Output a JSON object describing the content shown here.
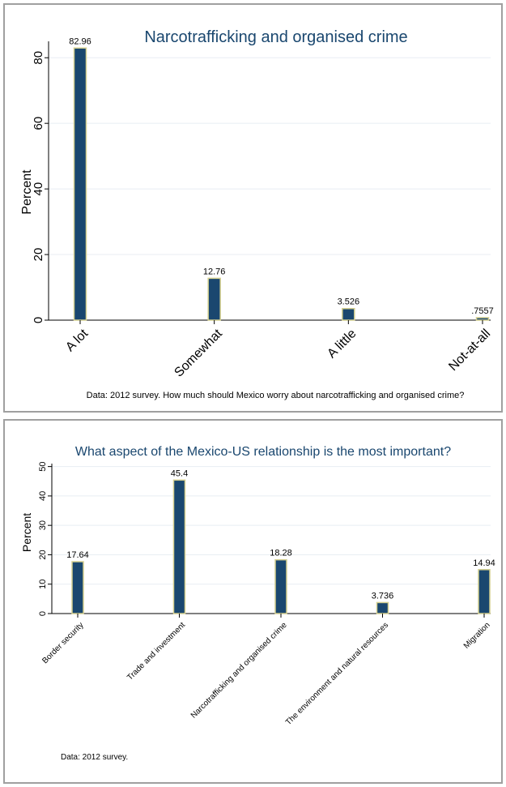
{
  "chart_data": [
    {
      "type": "bar",
      "title": "Narcotrafficking and organised crime",
      "ylabel": "Percent",
      "xlabel": "",
      "categories": [
        "A lot",
        "Somewhat",
        "A little",
        "Not-at-all"
      ],
      "values": [
        82.96,
        12.76,
        3.526,
        0.7557
      ],
      "value_labels": [
        "82.96",
        "12.76",
        "3.526",
        ".7557"
      ],
      "yticks": [
        0,
        20,
        40,
        60,
        80
      ],
      "ylim": [
        0,
        85
      ],
      "grid": true,
      "note": "Data: 2012 survey. How much should Mexico worry about narcotrafficking and organised crime?",
      "bar_color": "#1a476f",
      "bar_outline": "#d4cf8f",
      "title_color": "#1a476f"
    },
    {
      "type": "bar",
      "title": "What aspect of the Mexico-US relationship is the most important?",
      "ylabel": "Percent",
      "xlabel": "",
      "categories": [
        "Border security",
        "Trade and investment",
        "Narcotrafficking and organised crime",
        "The environment and natural resources",
        "Migration"
      ],
      "values": [
        17.64,
        45.4,
        18.28,
        3.736,
        14.94
      ],
      "value_labels": [
        "17.64",
        "45.4",
        "18.28",
        "3.736",
        "14.94"
      ],
      "yticks": [
        0,
        10,
        20,
        30,
        40,
        50
      ],
      "ylim": [
        0,
        51
      ],
      "grid": true,
      "note": "Data: 2012 survey.",
      "bar_color": "#1a476f",
      "bar_outline": "#d4cf8f",
      "title_color": "#1a476f"
    }
  ]
}
